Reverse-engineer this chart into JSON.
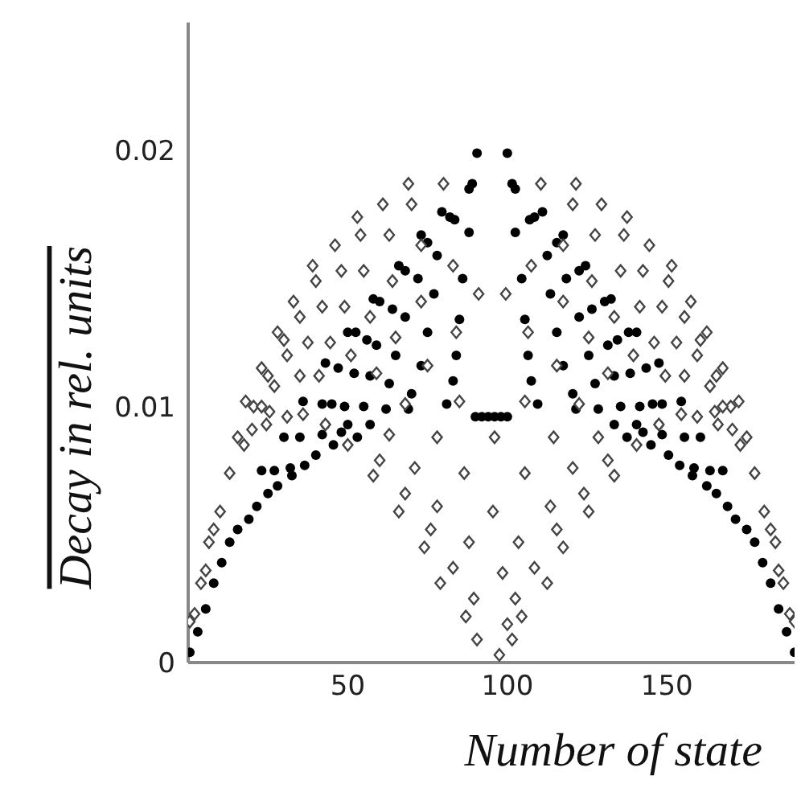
{
  "chart_data": {
    "type": "scatter",
    "xlabel": "Number of state",
    "ylabel": "Decay in rel. units",
    "xlim": [
      0,
      190
    ],
    "xticks": [
      50,
      100,
      150
    ],
    "ylim": [
      0,
      0.025
    ],
    "yticks": [
      0,
      0.01,
      0.02
    ],
    "grid": false,
    "legend": false,
    "series": [
      {
        "color": "#000000",
        "marker": "circle",
        "x": [
          0.5,
          3,
          5.5,
          8,
          10.5,
          13,
          15.5,
          19,
          21.5,
          23,
          25,
          27,
          28,
          30,
          32,
          32.5,
          35,
          36,
          36.5,
          40,
          42,
          43,
          42,
          43,
          45,
          45.5,
          47,
          48,
          49,
          50,
          50,
          52,
          52.5,
          53,
          55,
          56,
          57,
          57,
          58,
          59,
          60,
          62,
          63,
          64,
          65,
          66,
          68,
          68,
          69,
          70,
          72,
          73,
          73,
          75,
          75,
          77,
          78,
          79.5,
          81,
          82,
          83,
          83.5,
          84,
          85,
          86,
          88,
          88,
          89,
          90.5,
          90,
          92,
          94,
          96,
          98,
          100,
          190,
          187.5,
          185,
          182.5,
          180,
          177.5,
          175,
          171.5,
          169,
          167.5,
          165.5,
          163.5,
          162.5,
          160.5,
          158.5,
          158,
          155.5,
          154.5,
          154,
          150.5,
          148.5,
          147.5,
          148.5,
          147.5,
          145.5,
          145,
          143.5,
          142.5,
          141.5,
          140.5,
          140.5,
          138.5,
          138,
          137.5,
          135.5,
          134.5,
          133.5,
          133.5,
          132.5,
          131.5,
          130.5,
          128.5,
          127.5,
          126.5,
          125.5,
          124.5,
          122.5,
          122.5,
          121.5,
          120.5,
          118.5,
          117.5,
          117.5,
          115.5,
          115.5,
          113.5,
          112.5,
          111,
          109.5,
          108.5,
          107.5,
          107,
          106.5,
          105.5,
          104.5,
          102.5,
          102.5,
          101.5,
          100
        ],
        "values": [
          0.0004,
          0.0012,
          0.0021,
          0.0031,
          0.0039,
          0.0047,
          0.0052,
          0.0056,
          0.0061,
          0.0075,
          0.0066,
          0.0075,
          0.0069,
          0.0088,
          0.0076,
          0.0073,
          0.0088,
          0.0102,
          0.0077,
          0.0081,
          0.0089,
          0.0093,
          0.0101,
          0.0117,
          0.0101,
          0.0085,
          0.0115,
          0.009,
          0.01,
          0.0093,
          0.0129,
          0.0113,
          0.0129,
          0.0088,
          0.01,
          0.0126,
          0.0093,
          0.0112,
          0.0142,
          0.0124,
          0.0141,
          0.0099,
          0.0109,
          0.0138,
          0.012,
          0.0155,
          0.0135,
          0.0153,
          0.0099,
          0.0105,
          0.015,
          0.0116,
          0.0167,
          0.0129,
          0.0164,
          0.0144,
          0.0159,
          0.0176,
          0.0101,
          0.0174,
          0.011,
          0.0173,
          0.012,
          0.0134,
          0.015,
          0.0168,
          0.0185,
          0.0187,
          0.0199,
          0.0096,
          0.0096,
          0.0096,
          0.0096,
          0.0096,
          0.0096,
          0.0004,
          0.0012,
          0.0021,
          0.0031,
          0.0039,
          0.0047,
          0.0052,
          0.0056,
          0.0061,
          0.0075,
          0.0066,
          0.0075,
          0.0069,
          0.0088,
          0.0076,
          0.0073,
          0.0088,
          0.0102,
          0.0077,
          0.0081,
          0.0089,
          0.0093,
          0.0101,
          0.0117,
          0.0101,
          0.0085,
          0.0115,
          0.009,
          0.01,
          0.0093,
          0.0129,
          0.0113,
          0.0129,
          0.0088,
          0.01,
          0.0126,
          0.0093,
          0.0112,
          0.0142,
          0.0124,
          0.0141,
          0.0099,
          0.0109,
          0.0138,
          0.012,
          0.0155,
          0.0135,
          0.0153,
          0.0099,
          0.0105,
          0.015,
          0.0116,
          0.0167,
          0.0129,
          0.0164,
          0.0144,
          0.0159,
          0.0176,
          0.0101,
          0.0174,
          0.011,
          0.0173,
          0.012,
          0.0134,
          0.015,
          0.0168,
          0.0185,
          0.0187,
          0.0199
        ]
      },
      {
        "color": "#444444",
        "marker": "diamond",
        "x": [
          0.5,
          2,
          4,
          5.5,
          6.5,
          8,
          10,
          13,
          15.5,
          17.5,
          20,
          18,
          20.5,
          23,
          25.5,
          24.5,
          23,
          25,
          27,
          31,
          36,
          28,
          30,
          31,
          33,
          35,
          35,
          37.5,
          39,
          40,
          41,
          42,
          43,
          44.5,
          46,
          48,
          49,
          50,
          51,
          53,
          54,
          55,
          57,
          58,
          59,
          60,
          61,
          63,
          63,
          64,
          65,
          66,
          68,
          68,
          69,
          70,
          71,
          73,
          73,
          74,
          75,
          76,
          78,
          78,
          79,
          80,
          83,
          83,
          84,
          85,
          86.5,
          87,
          88,
          89.5,
          90.5,
          91,
          95.5,
          96,
          97.5,
          98.5,
          100,
          101.5,
          102.5,
          104.5,
          103.5,
          105.5,
          108.5,
          112.5,
          113.5,
          115.5,
          117.5,
          114.5,
          120.5,
          124,
          125.5,
          128.5,
          131.5,
          133.5,
          190,
          188.5,
          186.5,
          185,
          184,
          182.5,
          180.5,
          177.5,
          175,
          173,
          170.5,
          172.5,
          170,
          167.5,
          165,
          166,
          167.5,
          165.5,
          163.5,
          159.5,
          154.5,
          162.5,
          160.5,
          159.5,
          157.5,
          155.5,
          155.5,
          153,
          151.5,
          150.5,
          149.5,
          148.5,
          147.5,
          146,
          144.5,
          142.5,
          141.5,
          140.5,
          139.5,
          137.5,
          136.5,
          135.5,
          133.5,
          131.5,
          129.5,
          127.5,
          126.5,
          125.5,
          122.5,
          121.5,
          120.5,
          117.5,
          117.5,
          115.5,
          110.5,
          107.5,
          106.5,
          105.5,
          99.5
        ],
        "values": [
          0.0016,
          0.0019,
          0.0031,
          0.0036,
          0.0047,
          0.0052,
          0.0059,
          0.0074,
          0.0088,
          0.0085,
          0.0091,
          0.0102,
          0.01,
          0.01,
          0.0098,
          0.0093,
          0.0115,
          0.0112,
          0.0108,
          0.0096,
          0.0097,
          0.0129,
          0.0126,
          0.012,
          0.0141,
          0.0135,
          0.0112,
          0.0125,
          0.0155,
          0.0149,
          0.0112,
          0.0139,
          0.0093,
          0.0125,
          0.0163,
          0.0153,
          0.0139,
          0.0085,
          0.012,
          0.0174,
          0.0167,
          0.0153,
          0.0135,
          0.0073,
          0.0113,
          0.0079,
          0.0179,
          0.0167,
          0.0089,
          0.0149,
          0.0127,
          0.0059,
          0.0066,
          0.0101,
          0.0187,
          0.0179,
          0.0076,
          0.0163,
          0.0141,
          0.0045,
          0.0116,
          0.0052,
          0.0088,
          0.0061,
          0.0031,
          0.0187,
          0.0155,
          0.0037,
          0.0129,
          0.0102,
          0.0074,
          0.0018,
          0.0047,
          0.0025,
          0.0009,
          0.0144,
          0.0059,
          0.0088,
          0.0003,
          0.0035,
          0.0015,
          0.0009,
          0.0025,
          0.0018,
          0.0047,
          0.0074,
          0.0037,
          0.0031,
          0.0061,
          0.0052,
          0.0045,
          0.0088,
          0.0076,
          0.0066,
          0.0059,
          0.0088,
          0.0079,
          0.0073,
          0.0016,
          0.0019,
          0.0031,
          0.0036,
          0.0047,
          0.0052,
          0.0059,
          0.0074,
          0.0088,
          0.0085,
          0.0091,
          0.0102,
          0.01,
          0.01,
          0.0098,
          0.0093,
          0.0115,
          0.0112,
          0.0108,
          0.0096,
          0.0097,
          0.0129,
          0.0126,
          0.012,
          0.0141,
          0.0135,
          0.0112,
          0.0125,
          0.0155,
          0.0149,
          0.0112,
          0.0139,
          0.0093,
          0.0125,
          0.0163,
          0.0153,
          0.0139,
          0.0085,
          0.012,
          0.0174,
          0.0167,
          0.0153,
          0.0135,
          0.0113,
          0.0179,
          0.0167,
          0.0149,
          0.0127,
          0.0101,
          0.0187,
          0.0179,
          0.0163,
          0.0141,
          0.0116,
          0.0187,
          0.0155,
          0.0129,
          0.0102,
          0.0144
        ]
      }
    ]
  }
}
